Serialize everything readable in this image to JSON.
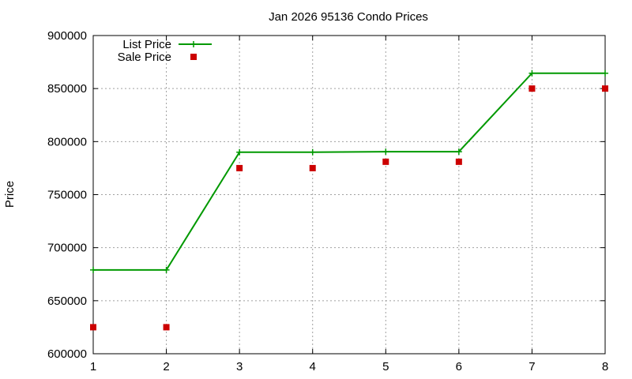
{
  "chart_data": {
    "type": "line",
    "title": "Jan 2026 95136 Condo Prices",
    "xlabel": "",
    "ylabel": "Price",
    "x": [
      1,
      2,
      3,
      4,
      5,
      6,
      7,
      8
    ],
    "xlim": [
      1,
      8
    ],
    "ylim": [
      600000,
      900000
    ],
    "xticks": [
      "1",
      "2",
      "3",
      "4",
      "5",
      "6",
      "7",
      "8"
    ],
    "yticks": [
      "600000",
      "650000",
      "700000",
      "750000",
      "800000",
      "850000",
      "900000"
    ],
    "grid": true,
    "legend_position": "top-left",
    "series": [
      {
        "name": "List Price",
        "style": "line-with-points",
        "color": "#009900",
        "values": [
          679000,
          679000,
          790000,
          790000,
          790500,
          790500,
          864500,
          864500
        ]
      },
      {
        "name": "Sale Price",
        "style": "points",
        "color": "#cc0000",
        "values": [
          625000,
          625000,
          775000,
          775000,
          781000,
          781000,
          850000,
          850000
        ]
      }
    ]
  }
}
